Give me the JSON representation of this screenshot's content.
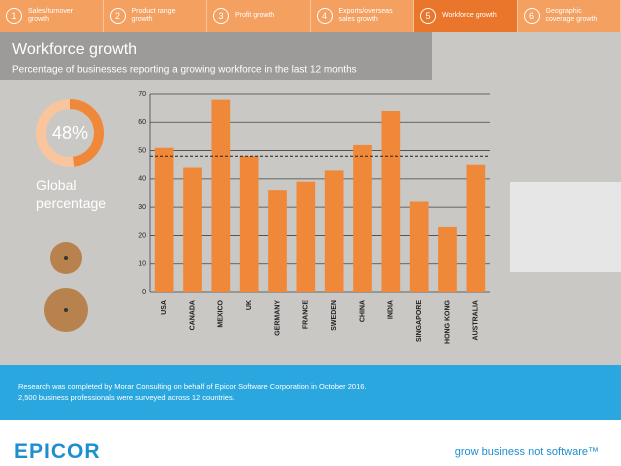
{
  "tabs": [
    {
      "number": "1",
      "label": "Sales/turnover growth"
    },
    {
      "number": "2",
      "label": "Product range growth"
    },
    {
      "number": "3",
      "label": "Profit growth"
    },
    {
      "number": "4",
      "label": "Exports/overseas sales growth"
    },
    {
      "number": "5",
      "label": "Workforce growth"
    },
    {
      "number": "6",
      "label": "Geographic coverage growth"
    }
  ],
  "chart_data": {
    "type": "bar",
    "title": "Workforce growth",
    "subtitle": "Percentage of businesses reporting a growing workforce in the last 12 months",
    "categories": [
      "USA",
      "CANADA",
      "MEXICO",
      "UK",
      "GERMANY",
      "FRANCE",
      "SWEDEN",
      "CHINA",
      "INDIA",
      "SINGAPORE",
      "HONG KONG",
      "AUSTRALIA"
    ],
    "values": [
      51,
      44,
      68,
      48,
      36,
      39,
      43,
      52,
      64,
      32,
      23,
      45
    ],
    "color": "#f0883a",
    "ylim": [
      0,
      70
    ],
    "yticks": [
      0,
      10,
      20,
      30,
      40,
      50,
      60,
      70
    ],
    "grid": true,
    "reference": {
      "value": 48,
      "label": "48%",
      "caption": "Global percentage"
    }
  },
  "footer": {
    "note_line1": "Research was completed by Morar Consulting on behalf of Epicor Software Corporation in October 2016.",
    "note_line2": "2,500 business professionals were surveyed across 12 countries.",
    "logo": "EPICOR",
    "tagline": "grow business not software™"
  }
}
